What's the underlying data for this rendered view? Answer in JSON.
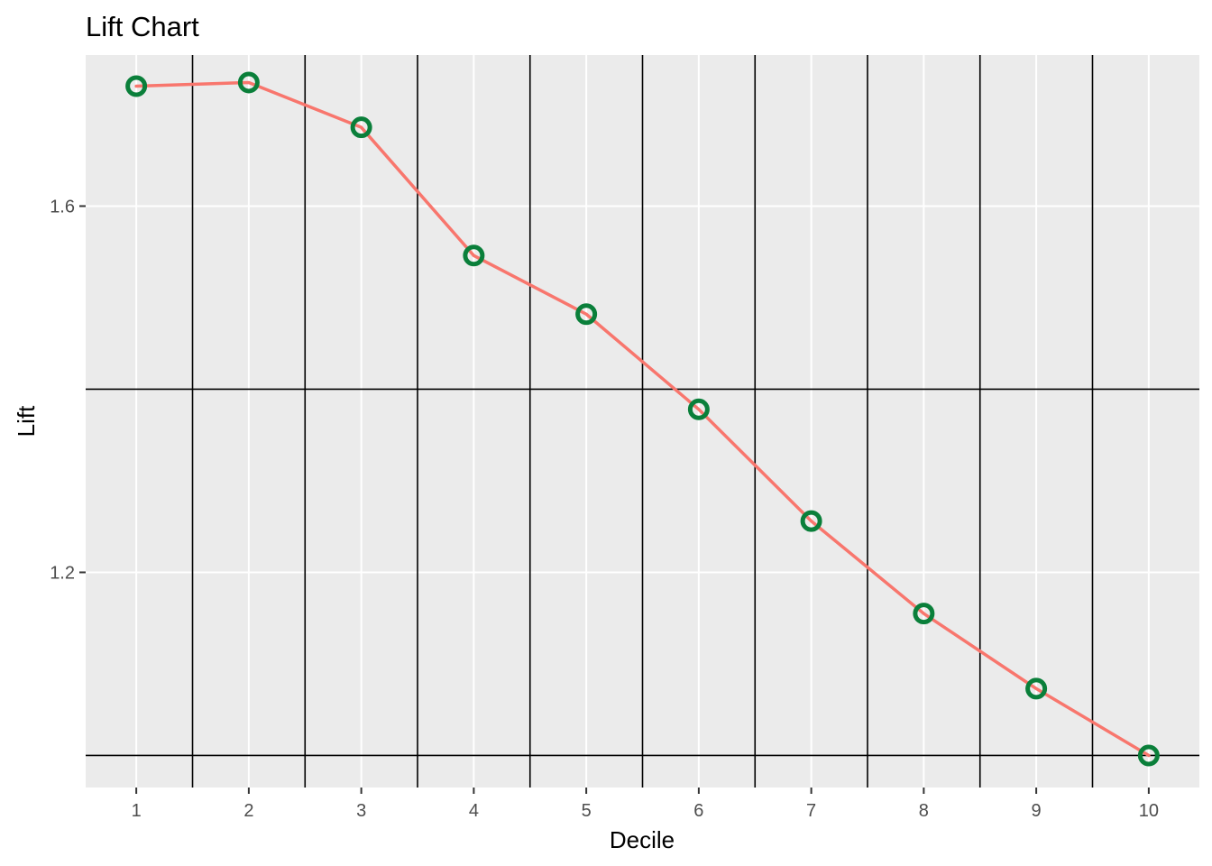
{
  "chart_data": {
    "type": "line",
    "title": "Lift Chart",
    "xlabel": "Decile",
    "ylabel": "Lift",
    "x": [
      1,
      2,
      3,
      4,
      5,
      6,
      7,
      8,
      9,
      10
    ],
    "x_tick_labels": [
      "1",
      "2",
      "3",
      "4",
      "5",
      "6",
      "7",
      "8",
      "9",
      "10"
    ],
    "y_tick_values": [
      1.2,
      1.6
    ],
    "y_tick_labels": [
      "1.2",
      "1.6"
    ],
    "xlim": [
      0.55,
      10.45
    ],
    "ylim": [
      0.965,
      1.765
    ],
    "series": [
      {
        "values": [
          1.731,
          1.735,
          1.686,
          1.546,
          1.482,
          1.378,
          1.256,
          1.155,
          1.073,
          1.0
        ],
        "line_color": "#F8766D",
        "point_color": "#0A7F3A"
      }
    ],
    "grid": true,
    "panel_background": "#EBEBEB",
    "grid_color": "#FFFFFF",
    "extra_line_color": "#000000",
    "legend": "none"
  }
}
